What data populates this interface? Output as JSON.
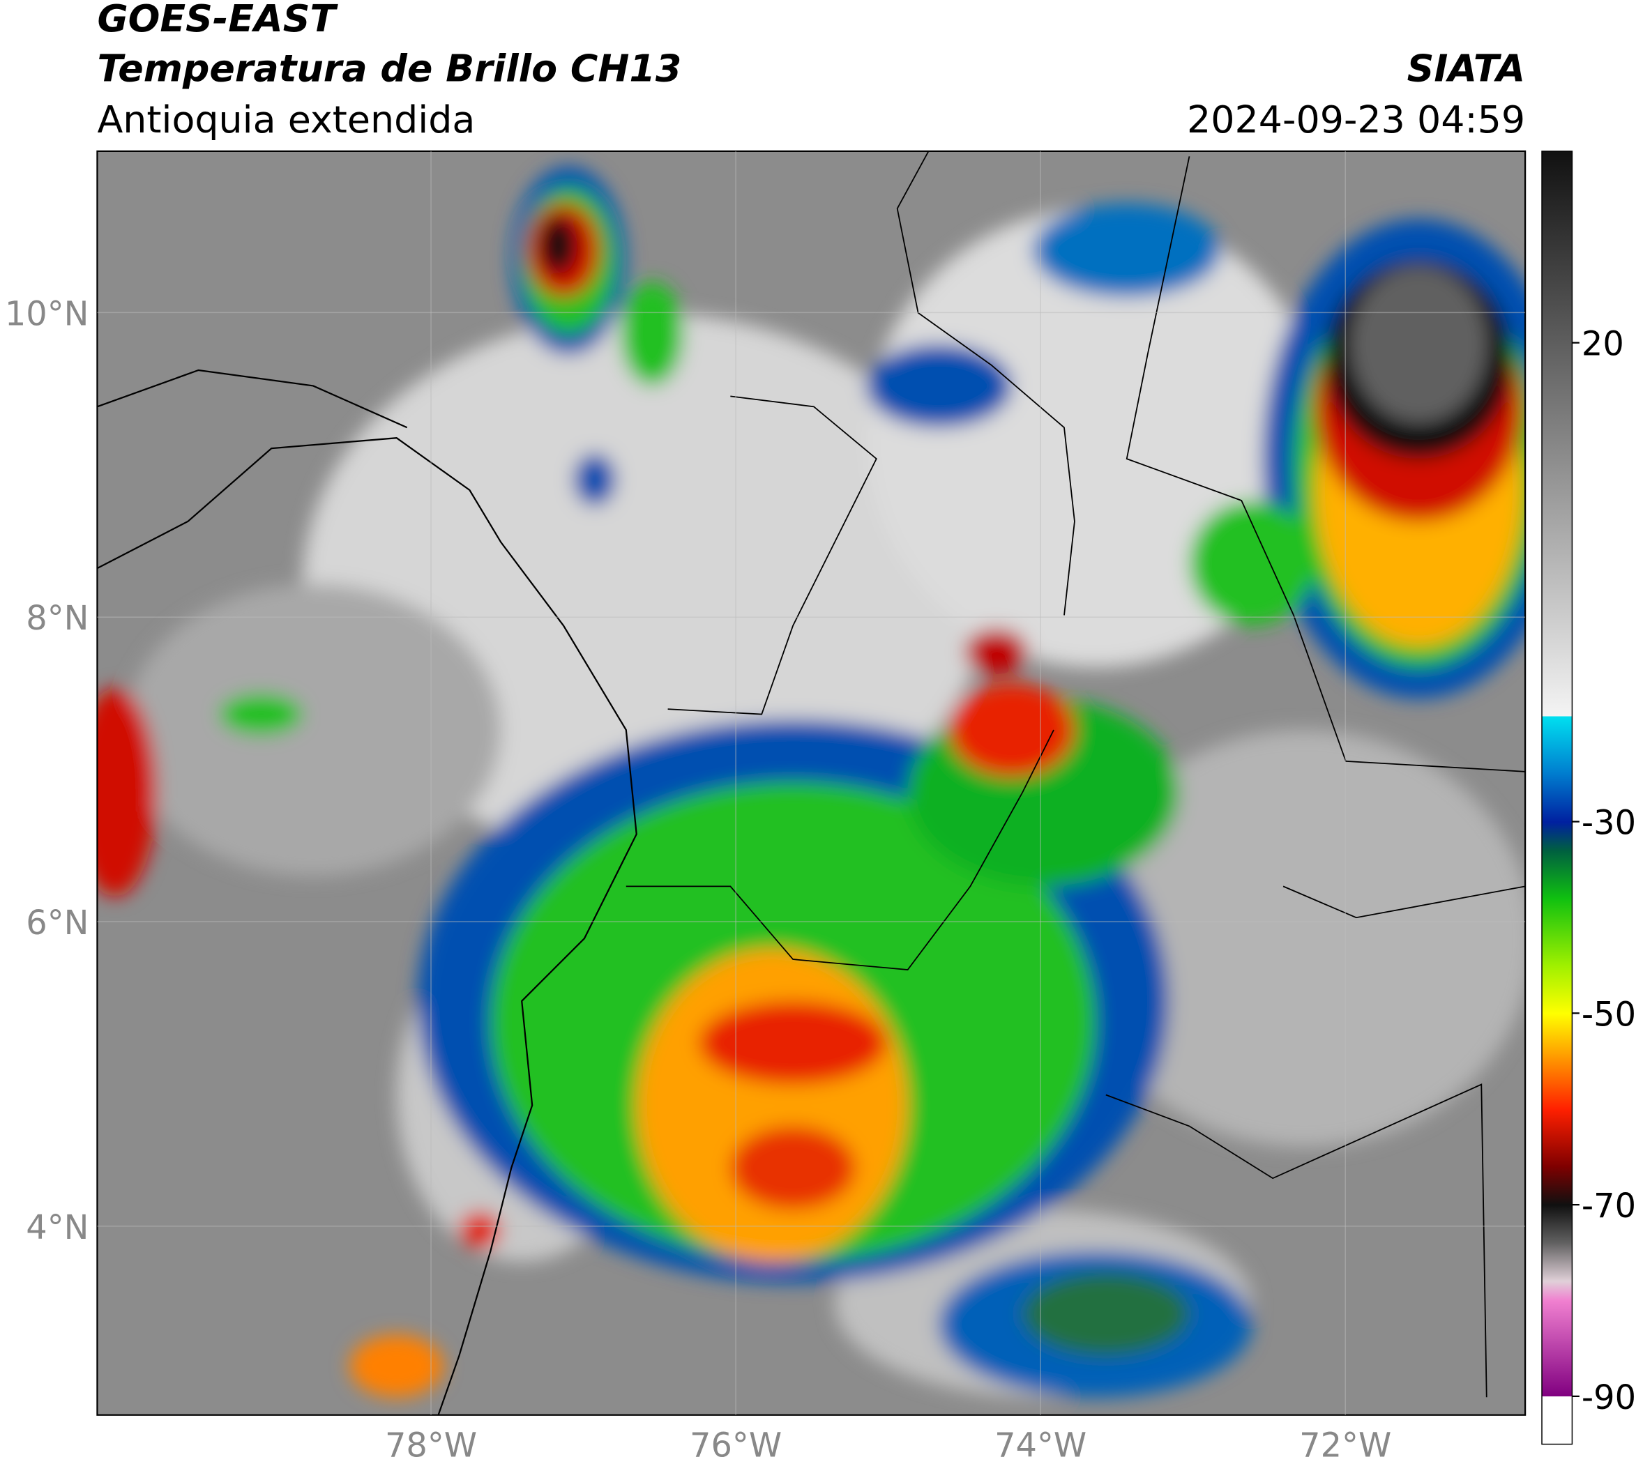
{
  "header": {
    "title": "GOES-EAST",
    "subtitle": "Temperatura de Brillo CH13",
    "region": "Antioquia extendida",
    "agency": "SIATA",
    "timestamp": "2024-09-23 04:59"
  },
  "map": {
    "xlim": [
      -80.19,
      -70.82
    ],
    "ylim": [
      2.76,
      11.06
    ],
    "xticks": [
      {
        "value": -78,
        "label": "78°W"
      },
      {
        "value": -76,
        "label": "76°W"
      },
      {
        "value": -74,
        "label": "74°W"
      },
      {
        "value": -72,
        "label": "72°W"
      }
    ],
    "yticks": [
      {
        "value": 10,
        "label": "10°N"
      },
      {
        "value": 8,
        "label": "8°N"
      },
      {
        "value": 6,
        "label": "6°N"
      },
      {
        "value": 4,
        "label": "4°N"
      }
    ],
    "grid": true
  },
  "colorbar": {
    "lim": [
      -95,
      40
    ],
    "ticks": [
      20,
      -30,
      -50,
      -70,
      -90
    ]
  }
}
